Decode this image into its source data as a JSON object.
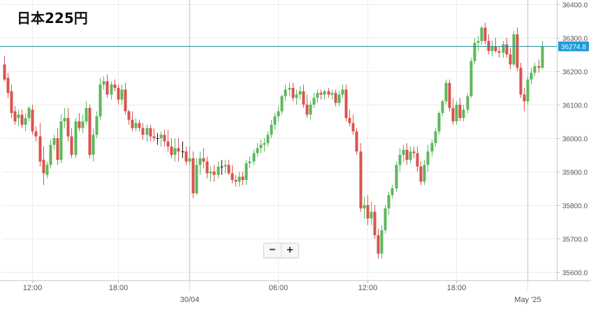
{
  "title": "日本225円",
  "zoom": {
    "minus": "−",
    "plus": "+"
  },
  "colors": {
    "up": "#5cb85c",
    "down": "#d9534f",
    "grid": "#ececec",
    "price_line": "#2a8f9c",
    "label_bg": "#1c9ad6"
  },
  "chart_data": {
    "type": "candlestick",
    "title": "日本225円",
    "current_price": 36274.8,
    "current_price_label": "36274.8",
    "ylim": [
      35580,
      36420
    ],
    "y_ticks": [
      35600,
      35700,
      35800,
      35900,
      36000,
      36100,
      36200,
      36300,
      36400
    ],
    "y_tick_labels": [
      "35600.0",
      "35700.0",
      "35800.0",
      "35900.0",
      "36000.0",
      "36100.0",
      "36200.0",
      "36300.0",
      "36400.0"
    ],
    "x_ticks": [
      {
        "label": "12:00",
        "index": 8,
        "day_separator": false
      },
      {
        "label": "18:00",
        "index": 32,
        "day_separator": false
      },
      {
        "label": "30/04",
        "index": 52,
        "day_separator": true
      },
      {
        "label": "06:00",
        "index": 77,
        "day_separator": false
      },
      {
        "label": "12:00",
        "index": 102,
        "day_separator": false
      },
      {
        "label": "18:00",
        "index": 127,
        "day_separator": false
      },
      {
        "label": "May '25",
        "index": 147,
        "day_separator": true
      }
    ],
    "grid": true,
    "candles": [
      [
        36220,
        36245,
        36170,
        36175
      ],
      [
        36180,
        36195,
        36120,
        36135
      ],
      [
        36140,
        36160,
        36060,
        36075
      ],
      [
        36080,
        36095,
        36040,
        36050
      ],
      [
        36060,
        36085,
        36035,
        36070
      ],
      [
        36070,
        36085,
        36030,
        36040
      ],
      [
        36040,
        36075,
        36020,
        36060
      ],
      [
        36060,
        36095,
        36050,
        36090
      ],
      [
        36085,
        36100,
        36010,
        36020
      ],
      [
        36020,
        36035,
        35990,
        36005
      ],
      [
        36005,
        36045,
        35915,
        35930
      ],
      [
        35935,
        35975,
        35860,
        35895
      ],
      [
        35890,
        35930,
        35880,
        35920
      ],
      [
        35920,
        35995,
        35910,
        35980
      ],
      [
        35980,
        36010,
        35965,
        36000
      ],
      [
        36000,
        36030,
        35920,
        35935
      ],
      [
        35935,
        36070,
        35925,
        36050
      ],
      [
        36050,
        36090,
        36030,
        36060
      ],
      [
        36060,
        36090,
        35990,
        36005
      ],
      [
        36005,
        36030,
        35940,
        35950
      ],
      [
        35950,
        36060,
        35940,
        36050
      ],
      [
        36050,
        36075,
        36020,
        36030
      ],
      [
        36030,
        36070,
        36015,
        36050
      ],
      [
        36050,
        36110,
        36040,
        36090
      ],
      [
        36090,
        36100,
        35940,
        35950
      ],
      [
        35950,
        36030,
        35930,
        36010
      ],
      [
        36010,
        36080,
        36000,
        36065
      ],
      [
        36065,
        36180,
        36055,
        36160
      ],
      [
        36160,
        36185,
        36145,
        36170
      ],
      [
        36170,
        36190,
        36120,
        36130
      ],
      [
        36130,
        36170,
        36115,
        36160
      ],
      [
        36160,
        36175,
        36140,
        36150
      ],
      [
        36150,
        36160,
        36100,
        36115
      ],
      [
        36115,
        36160,
        36100,
        36145
      ],
      [
        36145,
        36165,
        36070,
        36080
      ],
      [
        36080,
        36085,
        36040,
        36055
      ],
      [
        36055,
        36080,
        36020,
        36030
      ],
      [
        36030,
        36060,
        36020,
        36045
      ],
      [
        36045,
        36055,
        36020,
        36030
      ],
      [
        36030,
        36045,
        35995,
        36010
      ],
      [
        36010,
        36040,
        35990,
        36030
      ],
      [
        36030,
        36040,
        35990,
        36005
      ],
      [
        36005,
        36030,
        35990,
        36000
      ],
      [
        36000,
        36015,
        35980,
        36000
      ],
      [
        36000,
        36020,
        35975,
        36010
      ],
      [
        36010,
        36025,
        35975,
        35990
      ],
      [
        35990,
        36025,
        35960,
        35975
      ],
      [
        35975,
        36000,
        35940,
        35950
      ],
      [
        35950,
        36000,
        35930,
        35970
      ],
      [
        35970,
        36000,
        35930,
        35960
      ],
      [
        35960,
        35990,
        35940,
        35960
      ],
      [
        35960,
        35975,
        35920,
        35930
      ],
      [
        35930,
        35975,
        35920,
        35940
      ],
      [
        35940,
        35960,
        35820,
        35835
      ],
      [
        35835,
        35940,
        35830,
        35920
      ],
      [
        35920,
        35960,
        35890,
        35940
      ],
      [
        35940,
        35970,
        35910,
        35930
      ],
      [
        35930,
        35945,
        35880,
        35895
      ],
      [
        35895,
        35915,
        35870,
        35900
      ],
      [
        35900,
        35920,
        35870,
        35890
      ],
      [
        35890,
        35930,
        35880,
        35915
      ],
      [
        35915,
        35935,
        35890,
        35915
      ],
      [
        35915,
        35935,
        35895,
        35920
      ],
      [
        35920,
        35935,
        35890,
        35895
      ],
      [
        35895,
        35920,
        35865,
        35875
      ],
      [
        35875,
        35890,
        35855,
        35870
      ],
      [
        35870,
        35900,
        35855,
        35885
      ],
      [
        35885,
        35900,
        35860,
        35875
      ],
      [
        35875,
        35935,
        35860,
        35925
      ],
      [
        35925,
        35945,
        35910,
        35930
      ],
      [
        35930,
        35965,
        35920,
        35955
      ],
      [
        35955,
        35985,
        35945,
        35970
      ],
      [
        35970,
        35995,
        35955,
        35980
      ],
      [
        35980,
        36000,
        35960,
        35985
      ],
      [
        35985,
        36020,
        35975,
        36010
      ],
      [
        36010,
        36055,
        36000,
        36040
      ],
      [
        36040,
        36075,
        36025,
        36065
      ],
      [
        36065,
        36095,
        36050,
        36080
      ],
      [
        36080,
        36130,
        36070,
        36125
      ],
      [
        36125,
        36160,
        36110,
        36145
      ],
      [
        36145,
        36165,
        36125,
        36150
      ],
      [
        36150,
        36165,
        36110,
        36120
      ],
      [
        36120,
        36145,
        36100,
        36130
      ],
      [
        36130,
        36155,
        36115,
        36140
      ],
      [
        36140,
        36160,
        36090,
        36100
      ],
      [
        36100,
        36130,
        36060,
        36070
      ],
      [
        36070,
        36110,
        36055,
        36100
      ],
      [
        36100,
        36135,
        36090,
        36120
      ],
      [
        36120,
        36145,
        36105,
        36135
      ],
      [
        36135,
        36145,
        36115,
        36130
      ],
      [
        36130,
        36145,
        36115,
        36140
      ],
      [
        36140,
        36150,
        36120,
        36130
      ],
      [
        36130,
        36145,
        36115,
        36135
      ],
      [
        36135,
        36145,
        36095,
        36105
      ],
      [
        36105,
        36140,
        36095,
        36130
      ],
      [
        36130,
        36160,
        36120,
        36145
      ],
      [
        36145,
        36160,
        36050,
        36060
      ],
      [
        36060,
        36085,
        36035,
        36045
      ],
      [
        36045,
        36070,
        36010,
        36020
      ],
      [
        36020,
        36030,
        35950,
        35960
      ],
      [
        35960,
        35985,
        35780,
        35790
      ],
      [
        35790,
        35825,
        35760,
        35800
      ],
      [
        35800,
        35830,
        35740,
        35760
      ],
      [
        35760,
        35810,
        35740,
        35780
      ],
      [
        35780,
        35800,
        35700,
        35710
      ],
      [
        35710,
        35730,
        35640,
        35655
      ],
      [
        35655,
        35740,
        35640,
        35725
      ],
      [
        35725,
        35800,
        35715,
        35790
      ],
      [
        35790,
        35840,
        35770,
        35830
      ],
      [
        35830,
        35860,
        35820,
        35850
      ],
      [
        35850,
        35930,
        35840,
        35920
      ],
      [
        35920,
        35970,
        35900,
        35950
      ],
      [
        35950,
        35980,
        35930,
        35965
      ],
      [
        35965,
        35985,
        35920,
        35935
      ],
      [
        35935,
        35975,
        35925,
        35960
      ],
      [
        35960,
        35975,
        35940,
        35955
      ],
      [
        35955,
        35975,
        35900,
        35915
      ],
      [
        35915,
        35930,
        35860,
        35870
      ],
      [
        35870,
        35935,
        35860,
        35920
      ],
      [
        35920,
        35980,
        35900,
        35960
      ],
      [
        35960,
        35995,
        35945,
        35985
      ],
      [
        35985,
        36030,
        35975,
        36020
      ],
      [
        36020,
        36080,
        36010,
        36075
      ],
      [
        36075,
        36115,
        36065,
        36110
      ],
      [
        36110,
        36175,
        36100,
        36165
      ],
      [
        36165,
        36175,
        36080,
        36090
      ],
      [
        36090,
        36120,
        36040,
        36050
      ],
      [
        36050,
        36110,
        36040,
        36100
      ],
      [
        36100,
        36120,
        36050,
        36060
      ],
      [
        36060,
        36100,
        36050,
        36085
      ],
      [
        36085,
        36135,
        36075,
        36125
      ],
      [
        36125,
        36240,
        36120,
        36230
      ],
      [
        36230,
        36300,
        36220,
        36285
      ],
      [
        36285,
        36305,
        36260,
        36290
      ],
      [
        36290,
        36335,
        36280,
        36330
      ],
      [
        36330,
        36345,
        36280,
        36290
      ],
      [
        36290,
        36310,
        36250,
        36260
      ],
      [
        36260,
        36290,
        36245,
        36275
      ],
      [
        36275,
        36300,
        36255,
        36260
      ],
      [
        36260,
        36275,
        36240,
        36255
      ],
      [
        36255,
        36290,
        36240,
        36280
      ],
      [
        36280,
        36300,
        36240,
        36250
      ],
      [
        36250,
        36270,
        36205,
        36220
      ],
      [
        36220,
        36320,
        36215,
        36310
      ],
      [
        36310,
        36330,
        36200,
        36210
      ],
      [
        36210,
        36225,
        36120,
        36130
      ],
      [
        36130,
        36150,
        36080,
        36110
      ],
      [
        36110,
        36185,
        36100,
        36175
      ],
      [
        36175,
        36210,
        36160,
        36195
      ],
      [
        36195,
        36225,
        36185,
        36215
      ],
      [
        36215,
        36235,
        36195,
        36210
      ],
      [
        36210,
        36290,
        36205,
        36275
      ]
    ]
  }
}
